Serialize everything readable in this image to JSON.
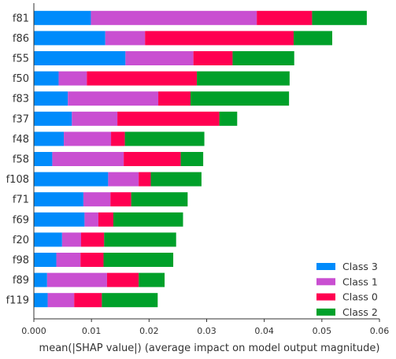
{
  "chart_data": {
    "type": "bar",
    "orientation": "horizontal",
    "stacked": true,
    "categories": [
      "f81",
      "f86",
      "f55",
      "f50",
      "f83",
      "f37",
      "f48",
      "f58",
      "f108",
      "f71",
      "f69",
      "f20",
      "f98",
      "f89",
      "f119"
    ],
    "series": [
      {
        "name": "Class 3",
        "color": "#008bfb",
        "values": [
          0.0099,
          0.0124,
          0.0159,
          0.0043,
          0.0059,
          0.0066,
          0.0052,
          0.0032,
          0.0129,
          0.0086,
          0.0088,
          0.0049,
          0.0039,
          0.0023,
          0.0024
        ]
      },
      {
        "name": "Class 1",
        "color": "#c94fd1",
        "values": [
          0.0288,
          0.0069,
          0.0118,
          0.0049,
          0.0157,
          0.0079,
          0.0082,
          0.0124,
          0.0053,
          0.0047,
          0.0024,
          0.0033,
          0.0042,
          0.0104,
          0.0046
        ]
      },
      {
        "name": "Class 0",
        "color": "#ff0051",
        "values": [
          0.0096,
          0.0258,
          0.0068,
          0.0191,
          0.0056,
          0.0177,
          0.0024,
          0.0099,
          0.0021,
          0.0036,
          0.0026,
          0.004,
          0.004,
          0.0055,
          0.0048
        ]
      },
      {
        "name": "Class 2",
        "color": "#00a02a",
        "values": [
          0.0095,
          0.0067,
          0.0107,
          0.0161,
          0.0171,
          0.0031,
          0.0138,
          0.0039,
          0.0088,
          0.0098,
          0.0121,
          0.0125,
          0.0121,
          0.0045,
          0.0097
        ]
      }
    ],
    "xlabel": "mean(|SHAP value|) (average impact on model output magnitude)",
    "xlim": [
      0,
      0.06
    ],
    "xticks": [
      "0.000",
      "0.01",
      "0.02",
      "0.03",
      "0.04",
      "0.05",
      "0.06"
    ],
    "xtick_values": [
      0,
      0.01,
      0.02,
      0.03,
      0.04,
      0.05,
      0.06
    ],
    "legend": {
      "placement": "bottom-right",
      "entries": [
        {
          "label": "Class 3",
          "color": "#008bfb"
        },
        {
          "label": "Class 1",
          "color": "#c94fd1"
        },
        {
          "label": "Class 0",
          "color": "#ff0051"
        },
        {
          "label": "Class 2",
          "color": "#00a02a"
        }
      ]
    },
    "grid": false
  }
}
